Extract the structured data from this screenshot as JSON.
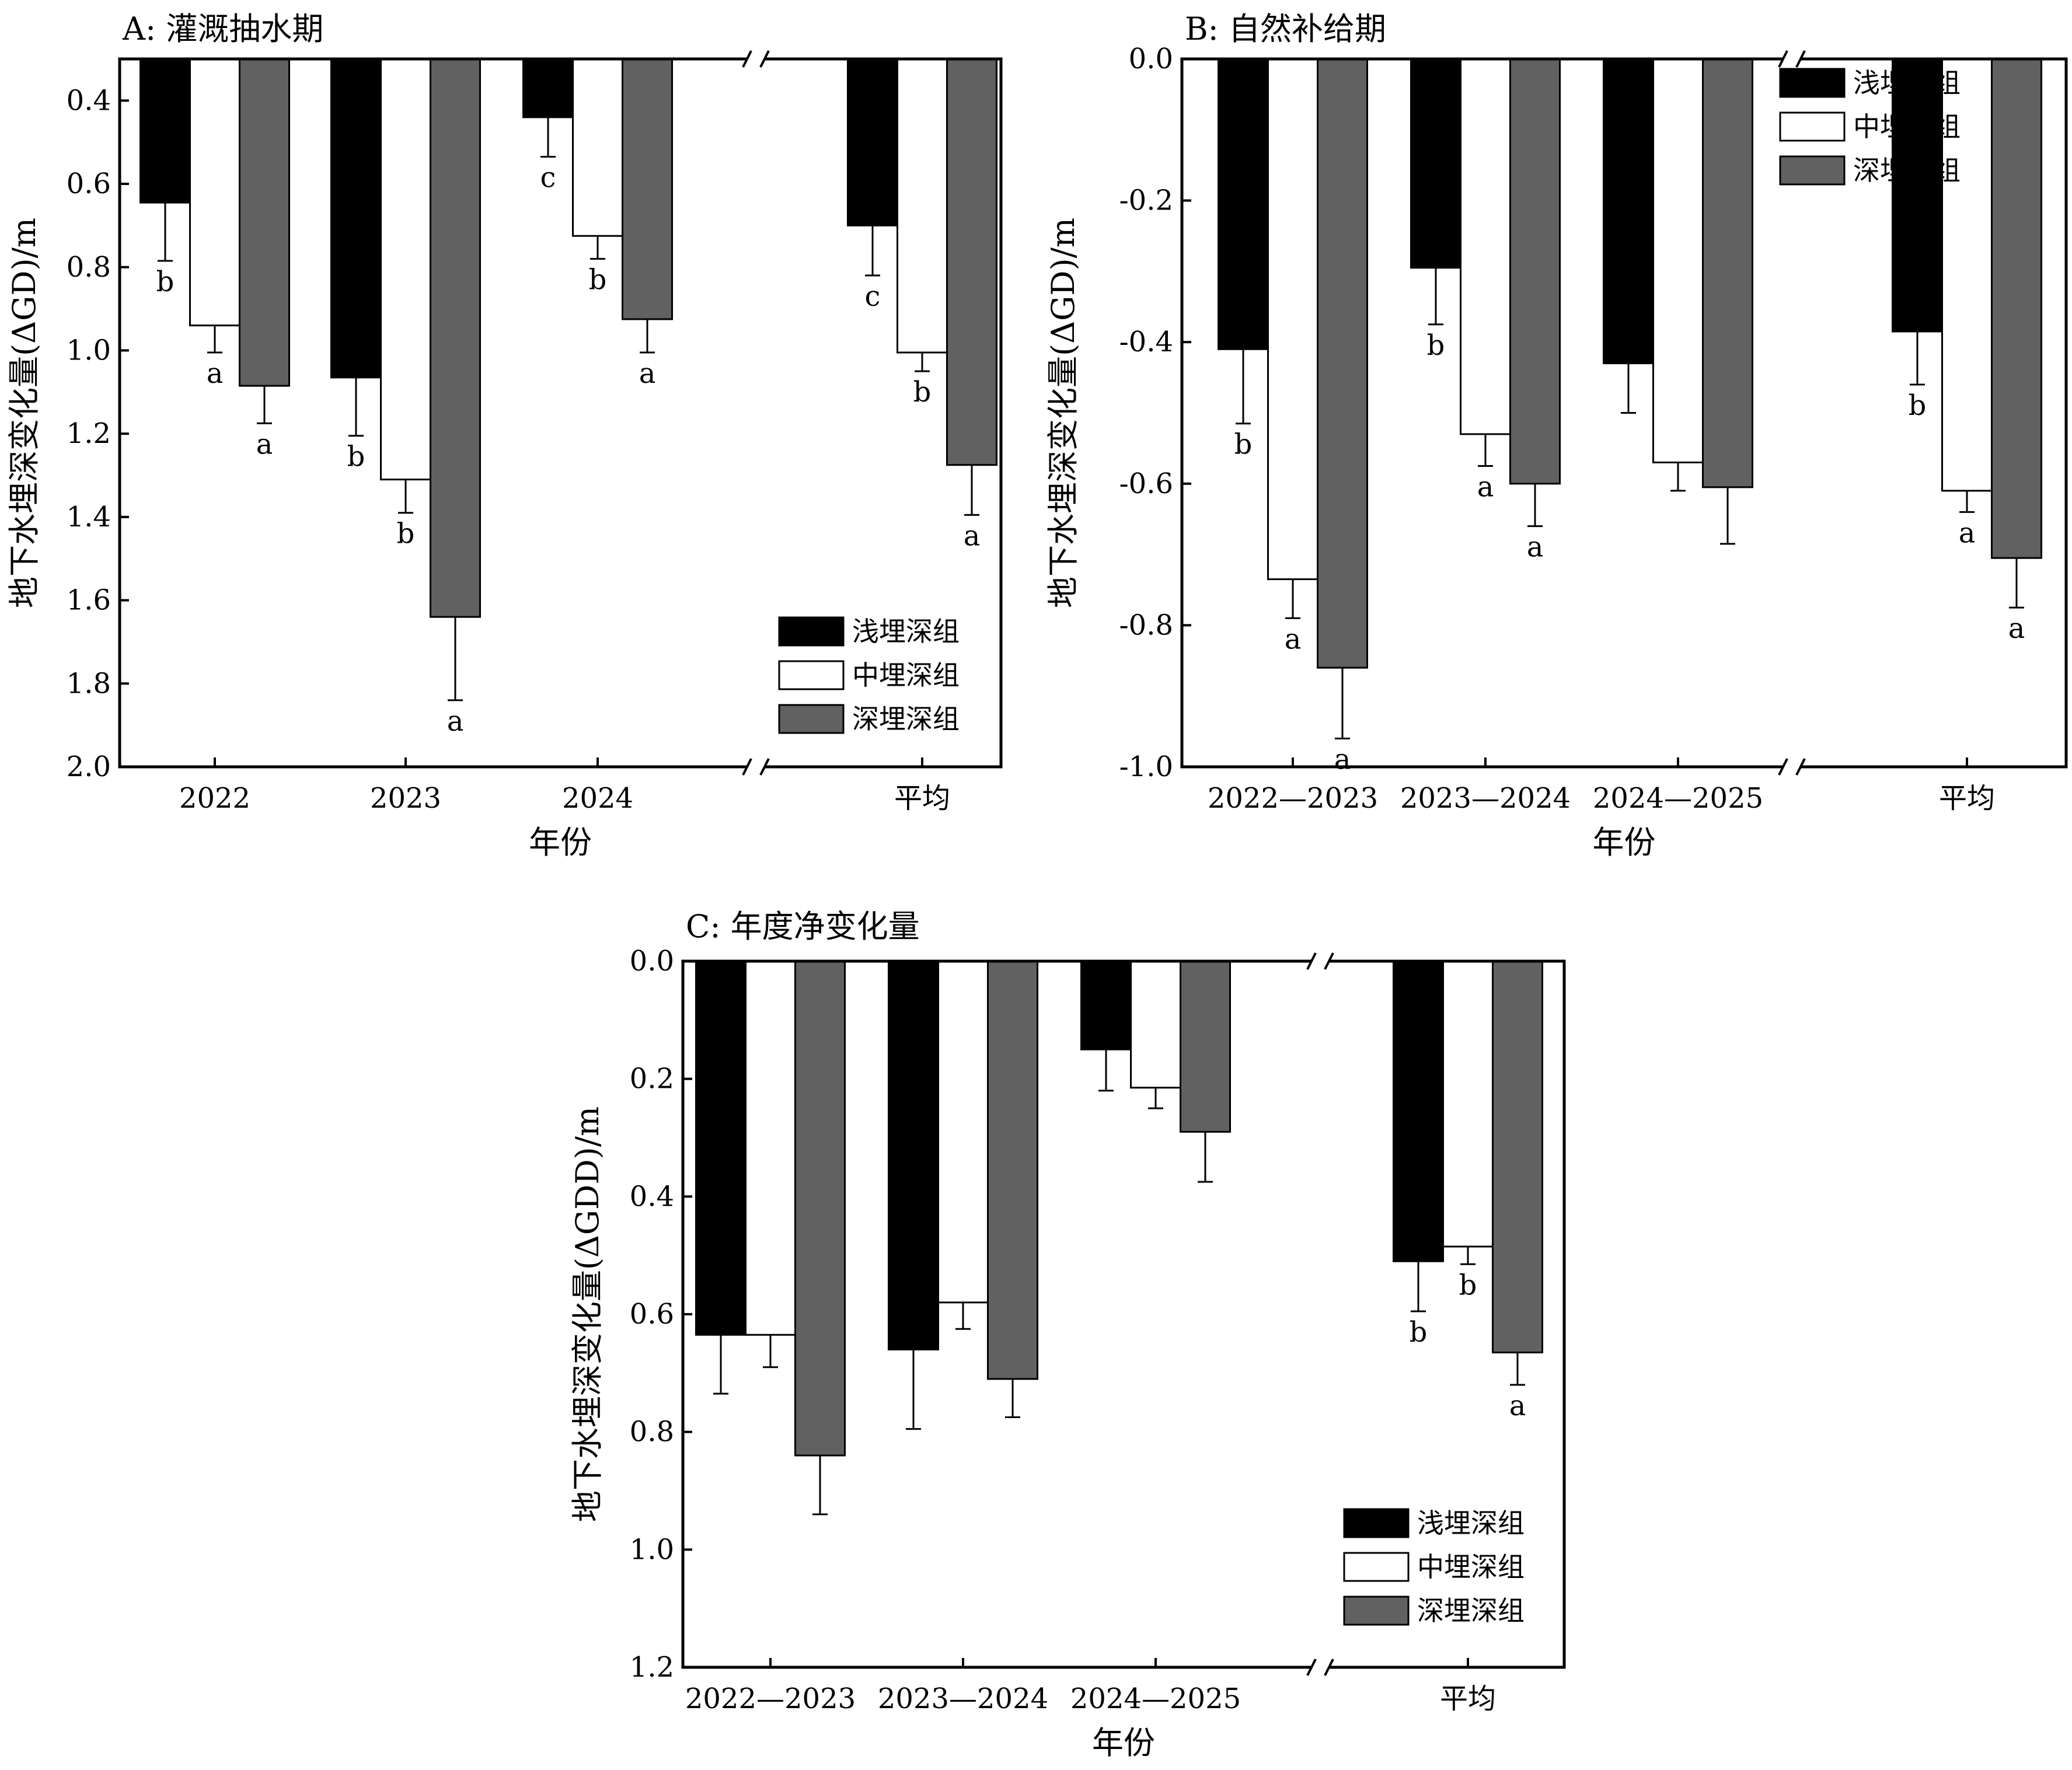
{
  "legend": [
    "浅埋深组",
    "中埋深组",
    "深埋深组"
  ],
  "colors": [
    "#000000",
    "#ffffff",
    "#616161"
  ],
  "charts": [
    {
      "title": "A: 灌溉抽水期",
      "xlabel": "年份",
      "ylabel": "地下水埋深变化量(ΔGD)/m",
      "chart_data": {
        "type": "bar",
        "categories": [
          "2022",
          "2023",
          "2024",
          "平均"
        ],
        "ylim": [
          0.3,
          2.0
        ],
        "yinverted": true,
        "yticks": [
          "0.4",
          "0.6",
          "0.8",
          "1.0",
          "1.2",
          "1.4",
          "1.6",
          "1.8",
          "2.0"
        ],
        "series": [
          {
            "name": "浅埋深组",
            "values": [
              0.645,
              1.065,
              0.44,
              0.7
            ],
            "errors": [
              0.14,
              0.14,
              0.095,
              0.12
            ],
            "letters": [
              "b",
              "b",
              "c",
              "c"
            ]
          },
          {
            "name": "中埋深组",
            "values": [
              0.94,
              1.31,
              0.725,
              1.005
            ],
            "errors": [
              0.065,
              0.08,
              0.055,
              0.045
            ],
            "letters": [
              "a",
              "b",
              "b",
              "b"
            ]
          },
          {
            "name": "深埋深组",
            "values": [
              1.085,
              1.64,
              0.925,
              1.275
            ],
            "errors": [
              0.09,
              0.2,
              0.08,
              0.12
            ],
            "letters": [
              "a",
              "a",
              "a",
              "a"
            ]
          }
        ],
        "axis_break": "between 2024 and 平均",
        "legend_position": "bottom-right"
      }
    },
    {
      "title": "B: 自然补给期",
      "xlabel": "年份",
      "ylabel": "地下水埋深变化量(ΔGD)/m",
      "chart_data": {
        "type": "bar",
        "categories": [
          "2022—2023",
          "2023—2024",
          "2024—2025",
          "平均"
        ],
        "ylim": [
          0.0,
          -1.0
        ],
        "yticks": [
          "-1.0",
          "-0.8",
          "-0.6",
          "-0.4",
          "-0.2",
          "0.0"
        ],
        "series": [
          {
            "name": "浅埋深组",
            "values": [
              -0.41,
              -0.295,
              -0.43,
              -0.385
            ],
            "errors": [
              0.105,
              0.08,
              0.07,
              0.075
            ],
            "letters": [
              "b",
              "b",
              "",
              "b"
            ]
          },
          {
            "name": "中埋深组",
            "values": [
              -0.735,
              -0.53,
              -0.57,
              -0.61
            ],
            "errors": [
              0.055,
              0.045,
              0.04,
              0.03
            ],
            "letters": [
              "a",
              "a",
              "",
              "a"
            ]
          },
          {
            "name": "深埋深组",
            "values": [
              -0.86,
              -0.6,
              -0.605,
              -0.705
            ],
            "errors": [
              0.1,
              0.06,
              0.08,
              0.07
            ],
            "letters": [
              "a",
              "a",
              "",
              "a"
            ]
          }
        ],
        "axis_break": "between 2024—2025 and 平均",
        "legend_position": "top-right"
      }
    },
    {
      "title": "C: 年度净变化量",
      "xlabel": "年份",
      "ylabel": "地下水埋深变化量(ΔGDD)/m",
      "chart_data": {
        "type": "bar",
        "categories": [
          "2022—2023",
          "2023—2024",
          "2024—2025",
          "平均"
        ],
        "ylim": [
          0.0,
          1.2
        ],
        "yinverted": true,
        "yticks": [
          "0.0",
          "0.2",
          "0.4",
          "0.6",
          "0.8",
          "1.0",
          "1.2"
        ],
        "series": [
          {
            "name": "浅埋深组",
            "values": [
              0.635,
              0.66,
              0.15,
              0.51
            ],
            "errors": [
              0.1,
              0.135,
              0.07,
              0.085
            ],
            "letters": [
              "",
              "",
              "",
              "b"
            ]
          },
          {
            "name": "中埋深组",
            "values": [
              0.635,
              0.58,
              0.215,
              0.485
            ],
            "errors": [
              0.055,
              0.045,
              0.035,
              0.03
            ],
            "letters": [
              "",
              "",
              "",
              "b"
            ]
          },
          {
            "name": "深埋深组",
            "values": [
              0.84,
              0.71,
              0.29,
              0.665
            ],
            "errors": [
              0.1,
              0.065,
              0.085,
              0.055
            ],
            "letters": [
              "",
              "",
              "",
              "a"
            ]
          }
        ],
        "axis_break": "between 2024—2025 and 平均",
        "legend_position": "bottom-right"
      }
    }
  ]
}
